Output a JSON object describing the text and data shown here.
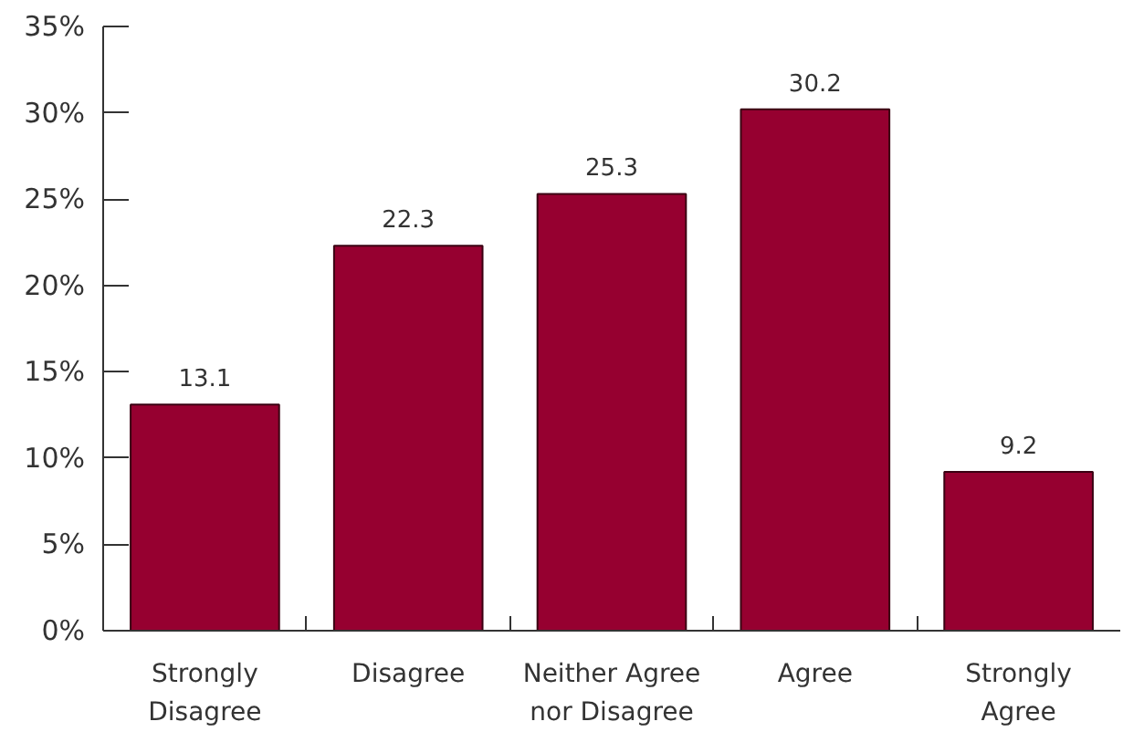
{
  "chart_data": {
    "type": "bar",
    "categories": [
      "Strongly Disagree",
      "Disagree",
      "Neither Agree nor Disagree",
      "Agree",
      "Strongly Agree"
    ],
    "values": [
      13.1,
      22.3,
      25.3,
      30.2,
      9.2
    ],
    "color": "#960030",
    "ylim": [
      0,
      35
    ],
    "yticks": [
      {
        "value": 0,
        "label": "0%"
      },
      {
        "value": 5,
        "label": "5%"
      },
      {
        "value": 10,
        "label": "10%"
      },
      {
        "value": 15,
        "label": "15%"
      },
      {
        "value": 20,
        "label": "20%"
      },
      {
        "value": 25,
        "label": "25%"
      },
      {
        "value": 30,
        "label": "30%"
      },
      {
        "value": 35,
        "label": "35%"
      }
    ],
    "data_labels": true
  }
}
